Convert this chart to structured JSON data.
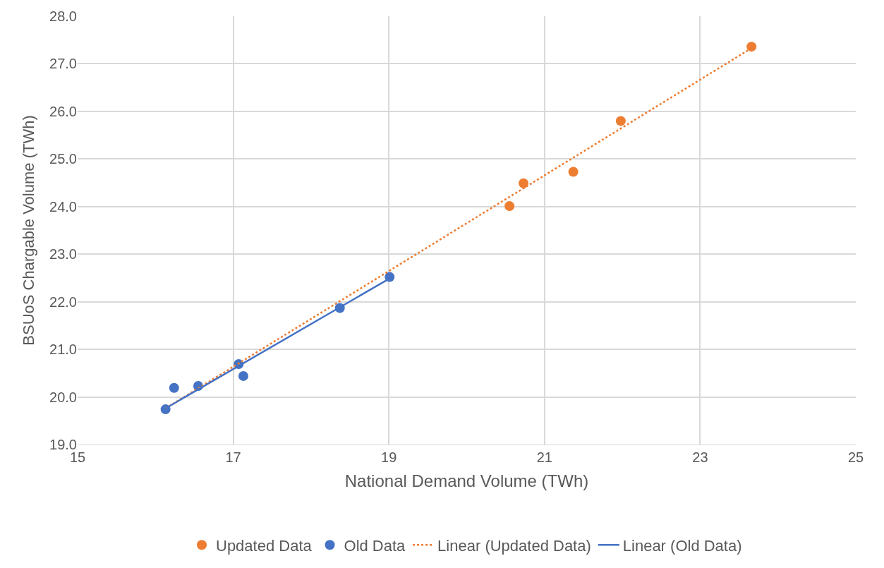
{
  "chart_data": {
    "type": "scatter",
    "xlabel": "National Demand Volume (TWh)",
    "ylabel": "BSUoS Chargable Volume (TWh)",
    "xlim": [
      15,
      25
    ],
    "xticks": [
      15,
      17,
      19,
      21,
      23,
      25
    ],
    "ylim": [
      19,
      28
    ],
    "yticks": [
      {
        "value": 19,
        "label": "19.0"
      },
      {
        "value": 20,
        "label": "20.0"
      },
      {
        "value": 21,
        "label": "21.0"
      },
      {
        "value": 22,
        "label": "22.0"
      },
      {
        "value": 23,
        "label": "23.0"
      },
      {
        "value": 24,
        "label": "24.0"
      },
      {
        "value": 25,
        "label": "25.0"
      },
      {
        "value": 26,
        "label": "26.0"
      },
      {
        "value": 27,
        "label": "27.0"
      },
      {
        "value": 28,
        "label": "28.0"
      }
    ],
    "grid": true,
    "legend": "bottom",
    "series": [
      {
        "name": "Updated Data",
        "marker": "circle",
        "color": "#ed7d31",
        "x": [
          20.55,
          20.73,
          21.37,
          21.98,
          23.66
        ],
        "values": [
          24.01,
          24.49,
          24.73,
          25.8,
          27.36
        ]
      },
      {
        "name": "Old Data",
        "marker": "circle",
        "color": "#4472c4",
        "x": [
          16.13,
          16.24,
          16.55,
          17.07,
          17.13,
          18.37,
          19.01
        ],
        "values": [
          19.74,
          20.19,
          20.23,
          20.69,
          20.44,
          21.87,
          22.52
        ]
      },
      {
        "name": "Linear (Updated Data)",
        "type": "line",
        "marker": "none",
        "line_style": "dotted",
        "color": "#ed7d31",
        "x": [
          16.13,
          23.66
        ],
        "values": [
          19.76,
          27.33
        ]
      },
      {
        "name": "Linear (Old Data)",
        "type": "line",
        "marker": "none",
        "line_style": "solid",
        "color": "#4472c4",
        "x": [
          16.13,
          19.01
        ],
        "values": [
          19.76,
          22.49
        ]
      }
    ]
  }
}
